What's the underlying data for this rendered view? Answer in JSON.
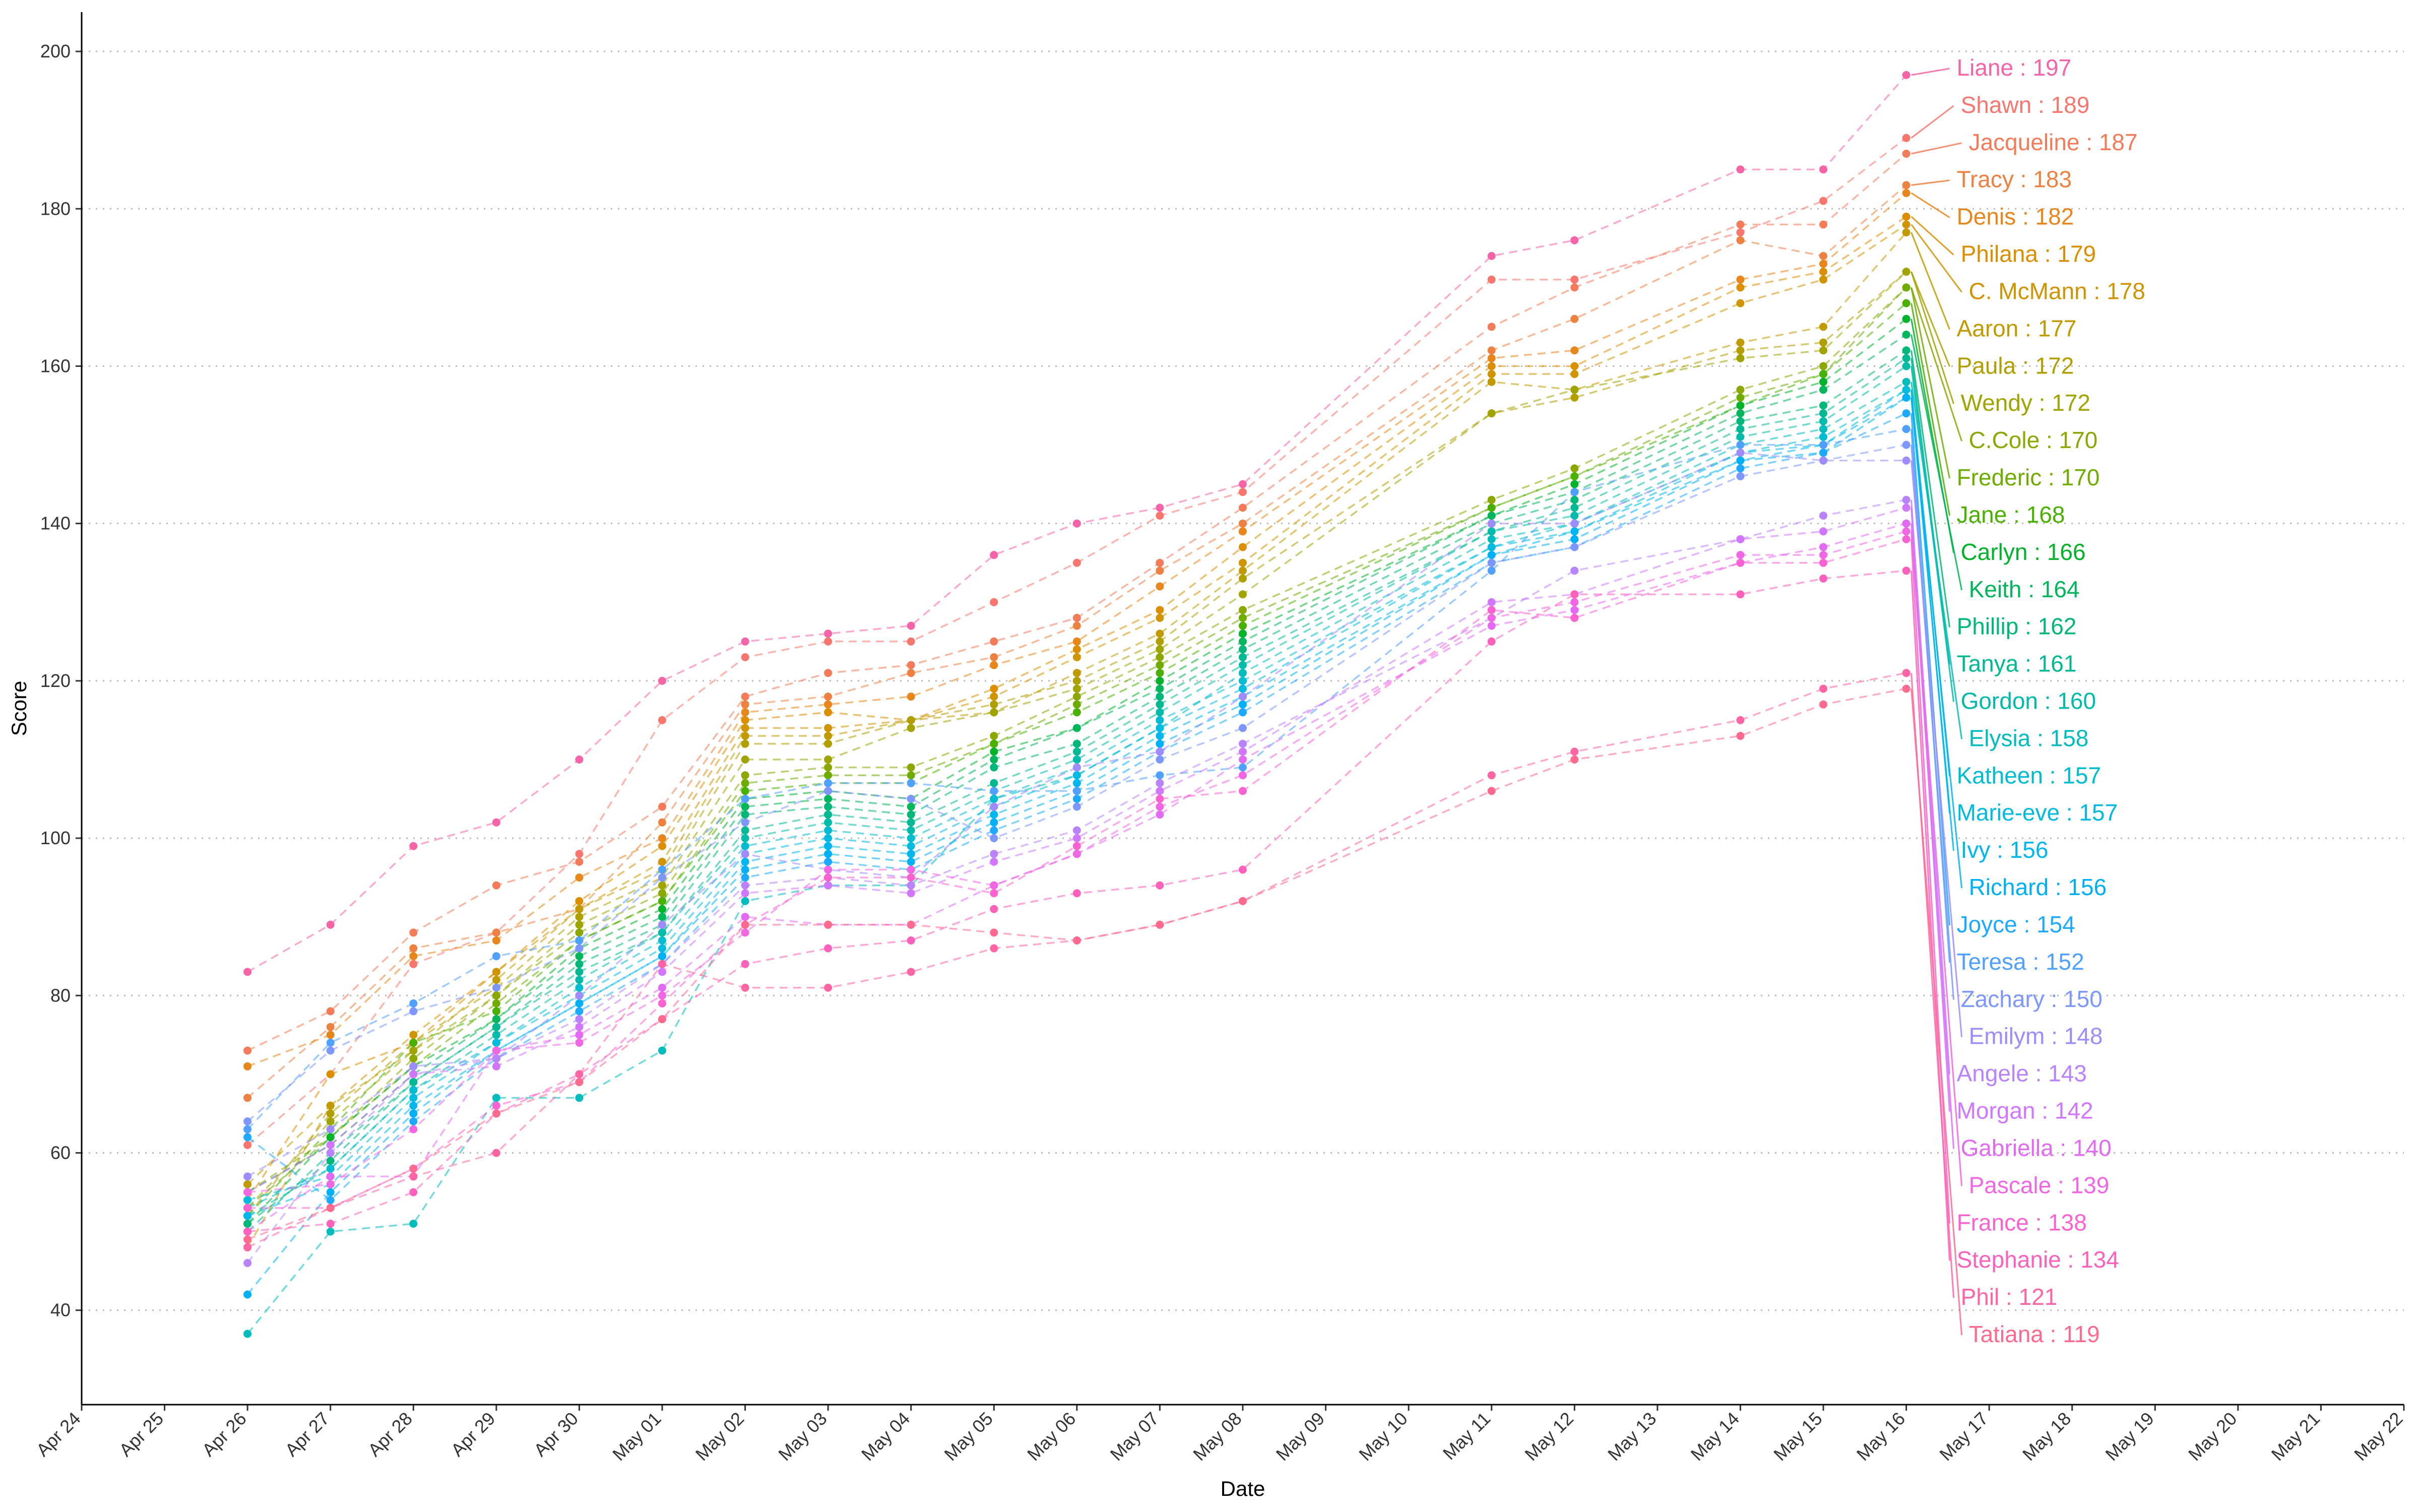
{
  "chart_data": {
    "type": "line",
    "title": "",
    "xlabel": "Date",
    "ylabel": "Score",
    "xlim": [
      "2019-04-24",
      "2019-05-22"
    ],
    "ylim": [
      28,
      205
    ],
    "y_ticks": [
      40,
      60,
      80,
      100,
      120,
      140,
      160,
      180,
      200
    ],
    "x_ticks": [
      "Apr 24",
      "Apr 25",
      "Apr 26",
      "Apr 27",
      "Apr 28",
      "Apr 29",
      "Apr 30",
      "May 01",
      "May 02",
      "May 03",
      "May 04",
      "May 05",
      "May 06",
      "May 07",
      "May 08",
      "May 09",
      "May 10",
      "May 11",
      "May 12",
      "May 13",
      "May 14",
      "May 15",
      "May 16",
      "May 17",
      "May 18",
      "May 19",
      "May 20",
      "May 21",
      "May 22"
    ],
    "grid": "horizontal-dotted",
    "legend": "none",
    "x": [
      "2019-04-26",
      "2019-04-27",
      "2019-04-28",
      "2019-04-29",
      "2019-04-30",
      "2019-05-01",
      "2019-05-02",
      "2019-05-03",
      "2019-05-04",
      "2019-05-05",
      "2019-05-06",
      "2019-05-07",
      "2019-05-08",
      "2019-05-11",
      "2019-05-12",
      "2019-05-14",
      "2019-05-15",
      "2019-05-16"
    ],
    "series": [
      {
        "name": "Liane",
        "label": "Liane : 197",
        "color": "#F564A7",
        "values": [
          83,
          89,
          99,
          102,
          110,
          120,
          125,
          126,
          127,
          136,
          140,
          142,
          145,
          174,
          176,
          185,
          185,
          197
        ]
      },
      {
        "name": "Shawn",
        "label": "Shawn : 189",
        "color": "#F8766D",
        "values": [
          61,
          70,
          84,
          88,
          98,
          115,
          123,
          125,
          125,
          130,
          135,
          141,
          144,
          171,
          171,
          177,
          181,
          189
        ]
      },
      {
        "name": "Jacqueline",
        "label": "Jacqueline : 187",
        "color": "#F37B59",
        "values": [
          73,
          78,
          88,
          94,
          97,
          104,
          118,
          121,
          122,
          125,
          128,
          135,
          142,
          165,
          170,
          178,
          178,
          187
        ]
      },
      {
        "name": "Tracy",
        "label": "Tracy : 183",
        "color": "#ED8141",
        "values": [
          67,
          76,
          86,
          88,
          91,
          102,
          117,
          118,
          121,
          123,
          127,
          134,
          140,
          162,
          166,
          176,
          174,
          183
        ]
      },
      {
        "name": "Denis",
        "label": "Denis : 182",
        "color": "#E7861B",
        "values": [
          71,
          75,
          85,
          87,
          95,
          100,
          116,
          117,
          118,
          122,
          125,
          132,
          139,
          161,
          162,
          171,
          173,
          182
        ]
      },
      {
        "name": "Philana",
        "label": "Philana : 179",
        "color": "#DB8E00",
        "values": [
          54,
          70,
          74,
          83,
          92,
          99,
          115,
          116,
          115,
          119,
          124,
          129,
          137,
          160,
          160,
          170,
          172,
          179
        ]
      },
      {
        "name": "C. McMann",
        "label": "C. McMann : 178",
        "color": "#CF9400",
        "values": [
          48,
          66,
          75,
          83,
          91,
          97,
          114,
          114,
          115,
          118,
          123,
          128,
          135,
          159,
          159,
          168,
          171,
          178
        ]
      },
      {
        "name": "Aaron",
        "label": "Aaron : 177",
        "color": "#C19A00",
        "values": [
          56,
          66,
          73,
          82,
          91,
          96,
          113,
          113,
          115,
          116,
          121,
          126,
          134,
          158,
          157,
          163,
          165,
          177
        ]
      },
      {
        "name": "Paula",
        "label": "Paula : 172",
        "color": "#B19F00",
        "values": [
          52,
          65,
          74,
          81,
          90,
          95,
          112,
          112,
          115,
          117,
          120,
          125,
          133,
          154,
          156,
          162,
          163,
          172
        ]
      },
      {
        "name": "Wendy",
        "label": "Wendy : 172",
        "color": "#9FA400",
        "values": [
          53,
          64,
          73,
          80,
          89,
          94,
          110,
          110,
          114,
          116,
          119,
          124,
          131,
          154,
          157,
          161,
          162,
          172
        ]
      },
      {
        "name": "C.Cole",
        "label": "C.Cole : 170",
        "color": "#8AA800",
        "values": [
          55,
          62,
          72,
          80,
          88,
          93,
          108,
          109,
          109,
          113,
          118,
          123,
          129,
          143,
          147,
          157,
          160,
          170
        ]
      },
      {
        "name": "Frederic",
        "label": "Frederic : 170",
        "color": "#6FAC00",
        "values": [
          53,
          62,
          71,
          79,
          87,
          92,
          107,
          108,
          108,
          112,
          117,
          122,
          128,
          142,
          146,
          156,
          159,
          170
        ]
      },
      {
        "name": "Jane",
        "label": "Jane : 168",
        "color": "#49B000",
        "values": [
          52,
          63,
          74,
          78,
          87,
          92,
          106,
          107,
          107,
          112,
          116,
          121,
          127,
          142,
          146,
          155,
          159,
          168
        ]
      },
      {
        "name": "Carlyn",
        "label": "Carlyn : 166",
        "color": "#00B32A",
        "values": [
          51,
          62,
          71,
          77,
          86,
          91,
          105,
          106,
          105,
          111,
          114,
          120,
          126,
          141,
          145,
          155,
          158,
          166
        ]
      },
      {
        "name": "Keith",
        "label": "Keith : 164",
        "color": "#00B55A",
        "values": [
          55,
          61,
          70,
          77,
          85,
          90,
          104,
          105,
          104,
          110,
          114,
          119,
          125,
          141,
          144,
          154,
          157,
          164
        ]
      },
      {
        "name": "Phillip",
        "label": "Phillip : 162",
        "color": "#00B779",
        "values": [
          51,
          59,
          69,
          76,
          84,
          89,
          103,
          104,
          103,
          109,
          112,
          118,
          124,
          140,
          143,
          153,
          155,
          162
        ]
      },
      {
        "name": "Tanya",
        "label": "Tanya : 161",
        "color": "#00B993",
        "values": [
          50,
          60,
          69,
          76,
          83,
          88,
          101,
          103,
          102,
          107,
          111,
          117,
          123,
          139,
          142,
          152,
          154,
          161
        ]
      },
      {
        "name": "Gordon",
        "label": "Gordon : 160",
        "color": "#00BBA9",
        "values": [
          52,
          58,
          68,
          75,
          82,
          88,
          100,
          102,
          101,
          106,
          110,
          116,
          122,
          139,
          141,
          151,
          153,
          160
        ]
      },
      {
        "name": "Elysia",
        "label": "Elysia : 158",
        "color": "#00BCBD",
        "values": [
          37,
          50,
          51,
          67,
          67,
          73,
          92,
          94,
          94,
          105,
          108,
          114,
          121,
          138,
          140,
          150,
          152,
          158
        ]
      },
      {
        "name": "Katheen",
        "label": "Katheen : 157",
        "color": "#00BCD1",
        "values": [
          53,
          58,
          68,
          74,
          81,
          87,
          99,
          101,
          100,
          105,
          109,
          115,
          120,
          137,
          140,
          149,
          151,
          157
        ]
      },
      {
        "name": "Marie-eve",
        "label": "Marie-eve : 157",
        "color": "#00BAE0",
        "values": [
          54,
          57,
          67,
          74,
          80,
          86,
          98,
          100,
          99,
          104,
          108,
          114,
          119,
          137,
          139,
          149,
          150,
          157
        ]
      },
      {
        "name": "Ivy",
        "label": "Ivy : 156",
        "color": "#00B6EE",
        "values": [
          52,
          56,
          66,
          73,
          79,
          85,
          97,
          99,
          98,
          103,
          107,
          113,
          118,
          136,
          139,
          148,
          150,
          156
        ]
      },
      {
        "name": "Richard",
        "label": "Richard : 156",
        "color": "#00B0F6",
        "values": [
          42,
          55,
          65,
          73,
          79,
          85,
          96,
          98,
          97,
          102,
          106,
          112,
          117,
          136,
          138,
          148,
          149,
          156
        ]
      },
      {
        "name": "Joyce",
        "label": "Joyce : 154",
        "color": "#1CA9FF",
        "values": [
          62,
          54,
          64,
          72,
          78,
          84,
          95,
          97,
          96,
          101,
          105,
          111,
          116,
          135,
          137,
          147,
          149,
          154
        ]
      },
      {
        "name": "Teresa",
        "label": "Teresa : 152",
        "color": "#4FA0FF",
        "values": [
          63,
          74,
          79,
          85,
          87,
          96,
          105,
          107,
          107,
          106,
          106,
          108,
          109,
          134,
          144,
          150,
          150,
          152
        ]
      },
      {
        "name": "Zachary",
        "label": "Zachary : 150",
        "color": "#7D97FF",
        "values": [
          64,
          73,
          78,
          81,
          86,
          95,
          102,
          106,
          105,
          100,
          104,
          110,
          114,
          135,
          137,
          146,
          148,
          150
        ]
      },
      {
        "name": "Emilym",
        "label": "Emilym : 148",
        "color": "#9E8CFF",
        "values": [
          57,
          63,
          71,
          72,
          80,
          89,
          98,
          96,
          95,
          104,
          109,
          111,
          118,
          140,
          140,
          149,
          148,
          148
        ]
      },
      {
        "name": "Angele",
        "label": "Angele : 143",
        "color": "#B983FF",
        "values": [
          46,
          60,
          70,
          72,
          77,
          84,
          94,
          95,
          94,
          98,
          101,
          107,
          112,
          128,
          134,
          138,
          141,
          143
        ]
      },
      {
        "name": "Morgan",
        "label": "Morgan : 142",
        "color": "#D076FF",
        "values": [
          55,
          61,
          70,
          71,
          76,
          83,
          93,
          94,
          93,
          97,
          100,
          106,
          111,
          130,
          131,
          138,
          139,
          142
        ]
      },
      {
        "name": "Gabriella",
        "label": "Gabriella : 140",
        "color": "#E36BF3",
        "values": [
          50,
          57,
          57,
          73,
          75,
          81,
          90,
          89,
          89,
          94,
          98,
          103,
          110,
          127,
          129,
          135,
          137,
          140
        ]
      },
      {
        "name": "Pascale",
        "label": "Pascale : 139",
        "color": "#F166E3",
        "values": [
          55,
          56,
          63,
          73,
          74,
          80,
          88,
          96,
          96,
          94,
          98,
          104,
          108,
          128,
          130,
          136,
          136,
          139
        ]
      },
      {
        "name": "France",
        "label": "France : 138",
        "color": "#F962D0",
        "values": [
          53,
          53,
          58,
          66,
          69,
          79,
          89,
          95,
          95,
          93,
          99,
          105,
          106,
          129,
          128,
          135,
          135,
          138
        ]
      },
      {
        "name": "Stephanie",
        "label": "Stephanie : 134",
        "color": "#FD61BC",
        "values": [
          50,
          51,
          55,
          65,
          70,
          77,
          84,
          86,
          87,
          91,
          93,
          94,
          96,
          125,
          131,
          131,
          133,
          134
        ]
      },
      {
        "name": "Phil",
        "label": "Phil : 121",
        "color": "#FF64A4",
        "values": [
          48,
          53,
          57,
          60,
          70,
          84,
          81,
          81,
          83,
          86,
          87,
          89,
          92,
          108,
          111,
          115,
          119,
          121
        ]
      },
      {
        "name": "Tatiana",
        "label": "Tatiana : 119",
        "color": "#FF6A8E",
        "values": [
          49,
          53,
          58,
          65,
          69,
          77,
          89,
          89,
          89,
          88,
          87,
          89,
          92,
          106,
          110,
          113,
          117,
          119
        ]
      }
    ]
  }
}
